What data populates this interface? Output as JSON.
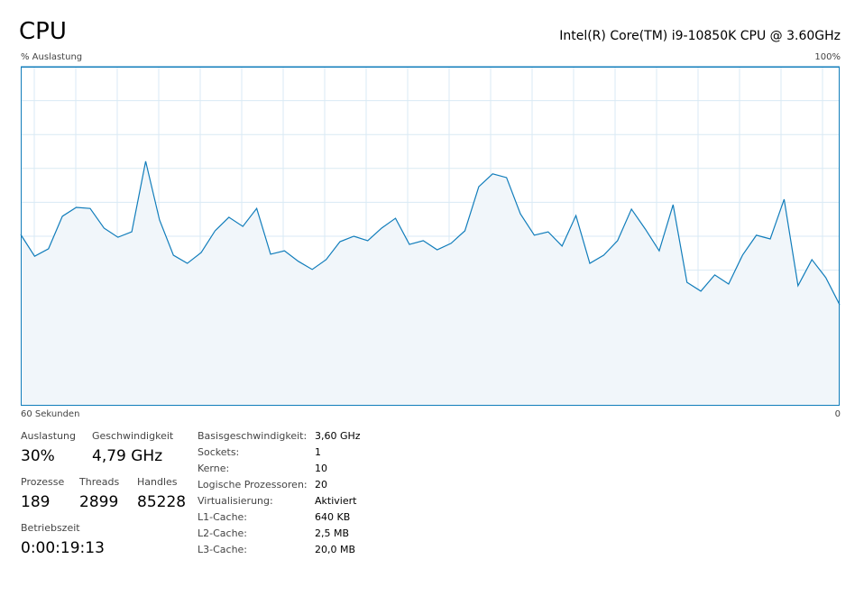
{
  "header": {
    "title": "CPU",
    "processor": "Intel(R) Core(TM) i9-10850K CPU @ 3.60GHz"
  },
  "chart_data": {
    "type": "area",
    "y_label": "% Auslastung",
    "x_left_label": "60 Sekunden",
    "x_right_label": "0",
    "ylim": [
      0,
      100
    ],
    "yticks": [
      {
        "value": 100,
        "label": "100%"
      }
    ],
    "grid": true,
    "color": "#117dbb",
    "fill": "#f1f6fa",
    "values": [
      50.5,
      44.1,
      46.3,
      55.9,
      58.5,
      58.2,
      52.4,
      49.7,
      51.3,
      72.1,
      54.8,
      44.4,
      42.0,
      45.2,
      51.6,
      55.6,
      52.9,
      58.2,
      44.7,
      45.7,
      42.6,
      40.2,
      43.1,
      48.4,
      50.0,
      48.7,
      52.4,
      55.3,
      47.6,
      48.7,
      46.0,
      47.9,
      51.6,
      64.6,
      68.4,
      67.3,
      56.6,
      50.3,
      51.3,
      47.1,
      56.1,
      42.0,
      44.4,
      48.7,
      58.0,
      52.1,
      45.7,
      59.3,
      36.4,
      33.8,
      38.6,
      35.9,
      44.4,
      50.3,
      49.2,
      60.9,
      35.4,
      43.1,
      37.8,
      29.8
    ]
  },
  "stats": [
    {
      "label": "Auslastung",
      "value": "30%"
    },
    {
      "label": "Geschwindigkeit",
      "value": "4,79 GHz"
    },
    {
      "label": "Prozesse",
      "value": "189"
    },
    {
      "label": "Threads",
      "value": "2899"
    },
    {
      "label": "Handles",
      "value": "85228"
    },
    {
      "label": "Betriebszeit",
      "value": "0:00:19:13"
    }
  ],
  "specs": [
    {
      "label": "Basisgeschwindigkeit:",
      "value": "3,60 GHz"
    },
    {
      "label": "Sockets:",
      "value": "1"
    },
    {
      "label": "Kerne:",
      "value": "10"
    },
    {
      "label": "Logische Prozessoren:",
      "value": "20"
    },
    {
      "label": "Virtualisierung:",
      "value": "Aktiviert"
    },
    {
      "label": "L1-Cache:",
      "value": "640 KB"
    },
    {
      "label": "L2-Cache:",
      "value": "2,5 MB"
    },
    {
      "label": "L3-Cache:",
      "value": "20,0 MB"
    }
  ]
}
